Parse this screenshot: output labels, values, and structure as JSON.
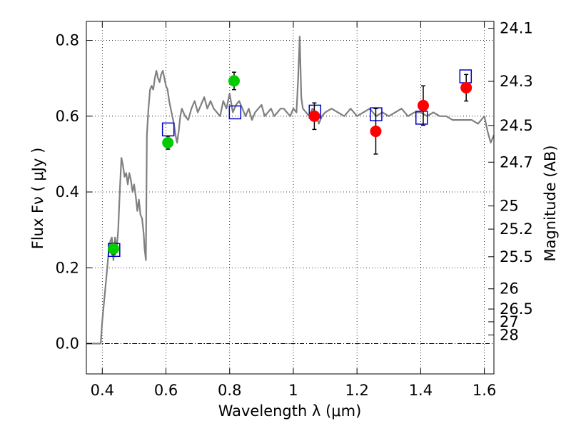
{
  "chart_data": {
    "type": "scatter",
    "xlabel": "Wavelength  λ (μm)",
    "ylabel": "Flux  Fν  ( μJy )",
    "y2label": "Magnitude (AB)",
    "xlim": [
      0.35,
      1.63
    ],
    "ylim": [
      -0.08,
      0.85
    ],
    "x_ticks": [
      0.4,
      0.6,
      0.8,
      1.0,
      1.2,
      1.4,
      1.6
    ],
    "x_tick_labels": [
      "0.4",
      "0.6",
      "0.8",
      "1",
      "1.2",
      "1.4",
      "1.6"
    ],
    "y_ticks": [
      0.0,
      0.2,
      0.4,
      0.6,
      0.8
    ],
    "y_tick_labels": [
      "0.0",
      "0.2",
      "0.4",
      "0.6",
      "0.8"
    ],
    "y2_ticks": [
      {
        "label": "24.1",
        "flux": 0.8318
      },
      {
        "label": "24.3",
        "flux": 0.6918
      },
      {
        "label": "24.5",
        "flux": 0.5754
      },
      {
        "label": "24.7",
        "flux": 0.4786
      },
      {
        "label": "25",
        "flux": 0.3631
      },
      {
        "label": "25.2",
        "flux": 0.302
      },
      {
        "label": "25.5",
        "flux": 0.2291
      },
      {
        "label": "26",
        "flux": 0.1445
      },
      {
        "label": "26.5",
        "flux": 0.0912
      },
      {
        "label": "27",
        "flux": 0.0575
      },
      {
        "label": "28",
        "flux": 0.0229
      }
    ],
    "grid": true,
    "colors": {
      "model": "#808080",
      "green_points": "#00cc00",
      "red_points": "#ff0000",
      "model_boxes": "#0000cc",
      "error_bars": "#000000",
      "zero_line": "#000000"
    },
    "series": [
      {
        "kind": "line",
        "x": [
          0.35,
          0.395,
          0.4,
          0.41,
          0.42,
          0.425,
          0.43,
          0.435,
          0.44,
          0.445,
          0.45,
          0.455,
          0.46,
          0.465,
          0.47,
          0.475,
          0.48,
          0.485,
          0.49,
          0.495,
          0.5,
          0.505,
          0.51,
          0.515,
          0.52,
          0.525,
          0.53,
          0.533,
          0.537,
          0.54,
          0.545,
          0.55,
          0.555,
          0.56,
          0.565,
          0.57,
          0.575,
          0.58,
          0.585,
          0.59,
          0.595,
          0.6,
          0.605,
          0.61,
          0.615,
          0.62,
          0.625,
          0.63,
          0.635,
          0.64,
          0.645,
          0.65,
          0.66,
          0.67,
          0.68,
          0.69,
          0.7,
          0.71,
          0.72,
          0.73,
          0.74,
          0.75,
          0.76,
          0.77,
          0.78,
          0.79,
          0.8,
          0.81,
          0.82,
          0.83,
          0.84,
          0.85,
          0.86,
          0.87,
          0.88,
          0.89,
          0.9,
          0.91,
          0.92,
          0.93,
          0.94,
          0.95,
          0.96,
          0.97,
          0.98,
          0.99,
          1.0,
          1.01,
          1.015,
          1.02,
          1.025,
          1.03,
          1.04,
          1.05,
          1.06,
          1.07,
          1.08,
          1.09,
          1.1,
          1.12,
          1.14,
          1.16,
          1.18,
          1.2,
          1.22,
          1.24,
          1.26,
          1.28,
          1.3,
          1.32,
          1.34,
          1.36,
          1.38,
          1.4,
          1.42,
          1.44,
          1.46,
          1.48,
          1.5,
          1.52,
          1.54,
          1.56,
          1.58,
          1.59,
          1.6,
          1.61,
          1.62,
          1.63
        ],
        "y": [
          0.0,
          0.0,
          0.06,
          0.15,
          0.24,
          0.27,
          0.28,
          0.22,
          0.28,
          0.25,
          0.3,
          0.4,
          0.49,
          0.47,
          0.44,
          0.45,
          0.42,
          0.45,
          0.43,
          0.4,
          0.42,
          0.39,
          0.35,
          0.38,
          0.34,
          0.33,
          0.29,
          0.25,
          0.22,
          0.55,
          0.62,
          0.67,
          0.68,
          0.67,
          0.7,
          0.72,
          0.7,
          0.69,
          0.71,
          0.72,
          0.7,
          0.68,
          0.67,
          0.64,
          0.62,
          0.6,
          0.58,
          0.55,
          0.53,
          0.56,
          0.6,
          0.62,
          0.6,
          0.59,
          0.62,
          0.64,
          0.61,
          0.63,
          0.65,
          0.62,
          0.64,
          0.62,
          0.61,
          0.6,
          0.64,
          0.62,
          0.66,
          0.61,
          0.63,
          0.64,
          0.62,
          0.6,
          0.62,
          0.59,
          0.61,
          0.62,
          0.63,
          0.6,
          0.61,
          0.62,
          0.6,
          0.61,
          0.62,
          0.62,
          0.61,
          0.6,
          0.62,
          0.61,
          0.7,
          0.81,
          0.65,
          0.62,
          0.61,
          0.6,
          0.62,
          0.61,
          0.58,
          0.6,
          0.61,
          0.62,
          0.61,
          0.6,
          0.62,
          0.6,
          0.61,
          0.62,
          0.6,
          0.61,
          0.6,
          0.61,
          0.62,
          0.6,
          0.61,
          0.61,
          0.6,
          0.61,
          0.6,
          0.6,
          0.59,
          0.59,
          0.59,
          0.59,
          0.58,
          0.59,
          0.6,
          0.56,
          0.53,
          0.55
        ]
      },
      {
        "kind": "points-green",
        "x": [
          0.435,
          0.606,
          0.814
        ],
        "y": [
          0.25,
          0.53,
          0.693
        ],
        "err": [
          0.015,
          0.017,
          0.023
        ]
      },
      {
        "kind": "points-red",
        "x": [
          1.066,
          1.259,
          1.408,
          1.543
        ],
        "y": [
          0.6,
          0.56,
          0.628,
          0.675
        ],
        "err": [
          0.035,
          0.06,
          0.052,
          0.035
        ]
      },
      {
        "kind": "boxes",
        "x": [
          0.437,
          0.607,
          0.817,
          1.068,
          1.26,
          1.403,
          1.541
        ],
        "y": [
          0.247,
          0.565,
          0.61,
          0.612,
          0.605,
          0.596,
          0.705
        ]
      }
    ]
  }
}
